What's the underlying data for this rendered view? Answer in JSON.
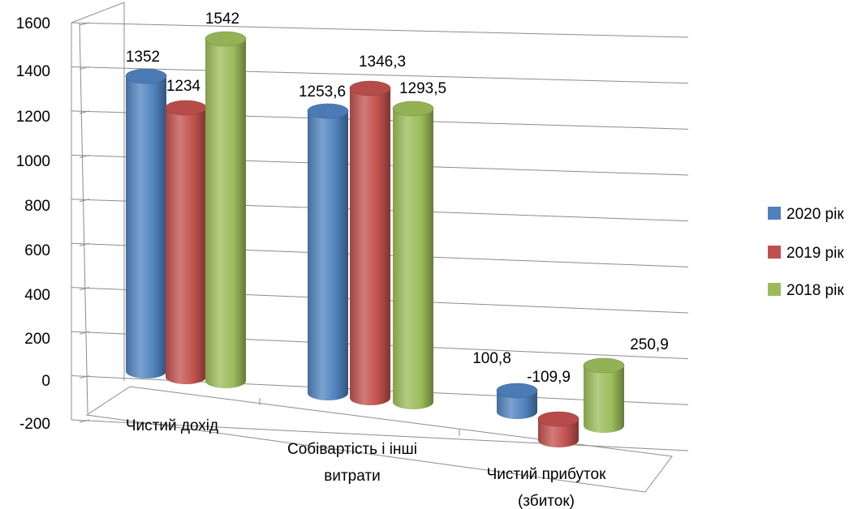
{
  "chart_data": {
    "type": "bar",
    "style": "3d-cylinder",
    "categories": [
      [
        "Чистий дохід"
      ],
      [
        "Собівартість і інші",
        "витрати"
      ],
      [
        "Чистий прибуток",
        "(збиток)"
      ]
    ],
    "series": [
      {
        "name": "2020 рік",
        "color": "#4f81bd",
        "values": [
          1352,
          1253.6,
          100.8
        ],
        "labels": [
          "1352",
          "1253,6",
          "100,8"
        ]
      },
      {
        "name": "2019 рік",
        "color": "#c0504d",
        "values": [
          1234,
          1346.3,
          -109.9
        ],
        "labels": [
          "1234",
          "1346,3",
          "-109,9"
        ]
      },
      {
        "name": "2018 рік",
        "color": "#9bbb59",
        "values": [
          1542,
          1293.5,
          250.9
        ],
        "labels": [
          "1542",
          "1293,5",
          "250,9"
        ]
      }
    ],
    "y_ticks": [
      "1600",
      "1400",
      "1200",
      "1000",
      "800",
      "600",
      "400",
      "200",
      "0",
      "-200"
    ],
    "ylim": [
      -200,
      1600
    ],
    "grid": true,
    "legend_position": "right"
  }
}
